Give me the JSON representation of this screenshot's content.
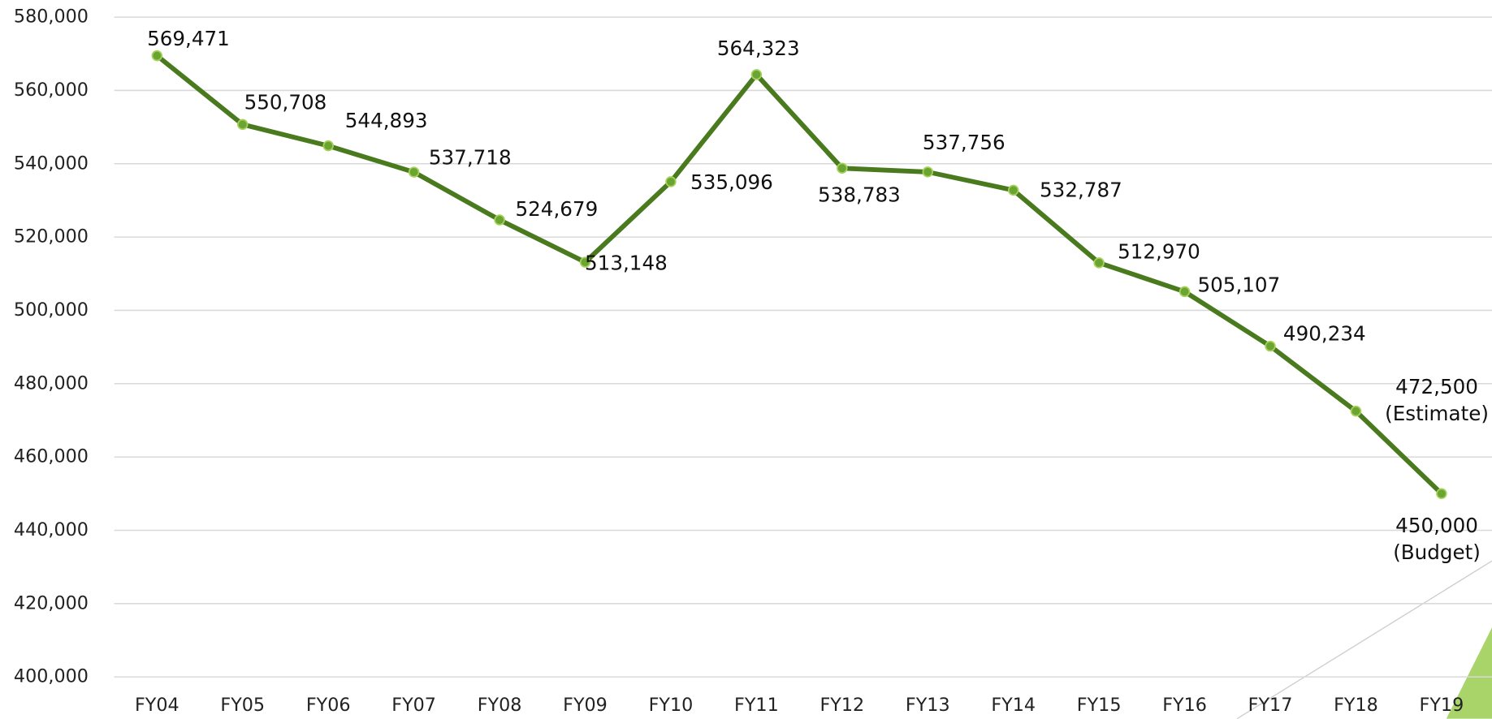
{
  "chart_data": {
    "type": "line",
    "categories": [
      "FY04",
      "FY05",
      "FY06",
      "FY07",
      "FY08",
      "FY09",
      "FY10",
      "FY11",
      "FY12",
      "FY13",
      "FY14",
      "FY15",
      "FY16",
      "FY17",
      "FY18",
      "FY19"
    ],
    "series": [
      {
        "color": "#4a7a1e",
        "values": [
          569471,
          550708,
          544893,
          537718,
          524679,
          513148,
          535096,
          564323,
          538783,
          537756,
          532787,
          512970,
          505107,
          490234,
          472500,
          450000
        ],
        "value_labels": [
          "569,471",
          "550,708",
          "544,893",
          "537,718",
          "524,679",
          "513,148",
          "535,096",
          "564,323",
          "538,783",
          "537,756",
          "532,787",
          "512,970",
          "505,107",
          "490,234",
          "472,500\n(Estimate)",
          "450,000\n(Budget)"
        ]
      }
    ],
    "ylim": [
      400000,
      580000
    ],
    "yticks": [
      {
        "value": 400000,
        "label": "400,000"
      },
      {
        "value": 420000,
        "label": "420,000"
      },
      {
        "value": 440000,
        "label": "440,000"
      },
      {
        "value": 460000,
        "label": "460,000"
      },
      {
        "value": 480000,
        "label": "480,000"
      },
      {
        "value": 500000,
        "label": "500,000"
      },
      {
        "value": 520000,
        "label": "520,000"
      },
      {
        "value": 540000,
        "label": "540,000"
      },
      {
        "value": 560000,
        "label": "560,000"
      },
      {
        "value": 580000,
        "label": "580,000"
      }
    ],
    "grid": true
  }
}
